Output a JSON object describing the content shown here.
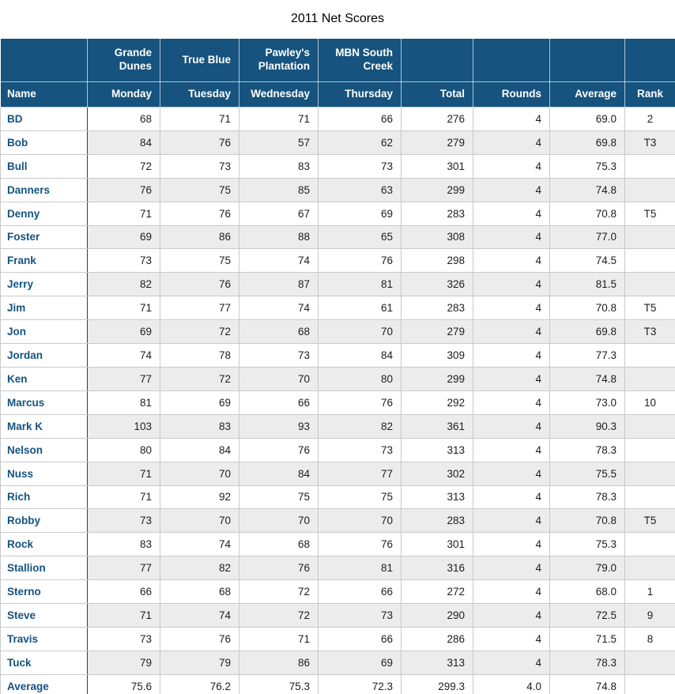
{
  "title": "2011 Net Scores",
  "colors": {
    "header_bg": "#16537E",
    "header_text": "#FFFFFF",
    "name_text": "#155380",
    "row_alt_bg": "#ECECEC",
    "grid_line": "#C9C9C9",
    "name_divider": "#3A3A3A"
  },
  "table": {
    "course_header": [
      "",
      "Grande Dunes",
      "True Blue",
      "Pawley's Plantation",
      "MBN South Creek",
      "",
      "",
      "",
      ""
    ],
    "day_header": [
      "Name",
      "Monday",
      "Tuesday",
      "Wednesday",
      "Thursday",
      "Total",
      "Rounds",
      "Average",
      "Rank"
    ],
    "rows": [
      {
        "name": "BD",
        "scores": [
          "68",
          "71",
          "71",
          "66"
        ],
        "total": "276",
        "rounds": "4",
        "average": "69.0",
        "rank": "2"
      },
      {
        "name": "Bob",
        "scores": [
          "84",
          "76",
          "57",
          "62"
        ],
        "total": "279",
        "rounds": "4",
        "average": "69.8",
        "rank": "T3"
      },
      {
        "name": "Bull",
        "scores": [
          "72",
          "73",
          "83",
          "73"
        ],
        "total": "301",
        "rounds": "4",
        "average": "75.3",
        "rank": ""
      },
      {
        "name": "Danners",
        "scores": [
          "76",
          "75",
          "85",
          "63"
        ],
        "total": "299",
        "rounds": "4",
        "average": "74.8",
        "rank": ""
      },
      {
        "name": "Denny",
        "scores": [
          "71",
          "76",
          "67",
          "69"
        ],
        "total": "283",
        "rounds": "4",
        "average": "70.8",
        "rank": "T5"
      },
      {
        "name": "Foster",
        "scores": [
          "69",
          "86",
          "88",
          "65"
        ],
        "total": "308",
        "rounds": "4",
        "average": "77.0",
        "rank": ""
      },
      {
        "name": "Frank",
        "scores": [
          "73",
          "75",
          "74",
          "76"
        ],
        "total": "298",
        "rounds": "4",
        "average": "74.5",
        "rank": ""
      },
      {
        "name": "Jerry",
        "scores": [
          "82",
          "76",
          "87",
          "81"
        ],
        "total": "326",
        "rounds": "4",
        "average": "81.5",
        "rank": ""
      },
      {
        "name": "Jim",
        "scores": [
          "71",
          "77",
          "74",
          "61"
        ],
        "total": "283",
        "rounds": "4",
        "average": "70.8",
        "rank": "T5"
      },
      {
        "name": "Jon",
        "scores": [
          "69",
          "72",
          "68",
          "70"
        ],
        "total": "279",
        "rounds": "4",
        "average": "69.8",
        "rank": "T3"
      },
      {
        "name": "Jordan",
        "scores": [
          "74",
          "78",
          "73",
          "84"
        ],
        "total": "309",
        "rounds": "4",
        "average": "77.3",
        "rank": ""
      },
      {
        "name": "Ken",
        "scores": [
          "77",
          "72",
          "70",
          "80"
        ],
        "total": "299",
        "rounds": "4",
        "average": "74.8",
        "rank": ""
      },
      {
        "name": "Marcus",
        "scores": [
          "81",
          "69",
          "66",
          "76"
        ],
        "total": "292",
        "rounds": "4",
        "average": "73.0",
        "rank": "10"
      },
      {
        "name": "Mark K",
        "scores": [
          "103",
          "83",
          "93",
          "82"
        ],
        "total": "361",
        "rounds": "4",
        "average": "90.3",
        "rank": ""
      },
      {
        "name": "Nelson",
        "scores": [
          "80",
          "84",
          "76",
          "73"
        ],
        "total": "313",
        "rounds": "4",
        "average": "78.3",
        "rank": ""
      },
      {
        "name": "Nuss",
        "scores": [
          "71",
          "70",
          "84",
          "77"
        ],
        "total": "302",
        "rounds": "4",
        "average": "75.5",
        "rank": ""
      },
      {
        "name": "Rich",
        "scores": [
          "71",
          "92",
          "75",
          "75"
        ],
        "total": "313",
        "rounds": "4",
        "average": "78.3",
        "rank": ""
      },
      {
        "name": "Robby",
        "scores": [
          "73",
          "70",
          "70",
          "70"
        ],
        "total": "283",
        "rounds": "4",
        "average": "70.8",
        "rank": "T5"
      },
      {
        "name": "Rock",
        "scores": [
          "83",
          "74",
          "68",
          "76"
        ],
        "total": "301",
        "rounds": "4",
        "average": "75.3",
        "rank": ""
      },
      {
        "name": "Stallion",
        "scores": [
          "77",
          "82",
          "76",
          "81"
        ],
        "total": "316",
        "rounds": "4",
        "average": "79.0",
        "rank": ""
      },
      {
        "name": "Sterno",
        "scores": [
          "66",
          "68",
          "72",
          "66"
        ],
        "total": "272",
        "rounds": "4",
        "average": "68.0",
        "rank": "1"
      },
      {
        "name": "Steve",
        "scores": [
          "71",
          "74",
          "72",
          "73"
        ],
        "total": "290",
        "rounds": "4",
        "average": "72.5",
        "rank": "9"
      },
      {
        "name": "Travis",
        "scores": [
          "73",
          "76",
          "71",
          "66"
        ],
        "total": "286",
        "rounds": "4",
        "average": "71.5",
        "rank": "8"
      },
      {
        "name": "Tuck",
        "scores": [
          "79",
          "79",
          "86",
          "69"
        ],
        "total": "313",
        "rounds": "4",
        "average": "78.3",
        "rank": ""
      },
      {
        "name": "Average",
        "scores": [
          "75.6",
          "76.2",
          "75.3",
          "72.3"
        ],
        "total": "299.3",
        "rounds": "4.0",
        "average": "74.8",
        "rank": ""
      }
    ]
  },
  "chart_data": {
    "type": "table",
    "title": "2011 Net Scores",
    "columns": [
      "Name",
      "Monday (Grande Dunes)",
      "Tuesday (True Blue)",
      "Wednesday (Pawley's Plantation)",
      "Thursday (MBN South Creek)",
      "Total",
      "Rounds",
      "Average",
      "Rank"
    ],
    "rows": [
      [
        "BD",
        68,
        71,
        71,
        66,
        276,
        4,
        69.0,
        "2"
      ],
      [
        "Bob",
        84,
        76,
        57,
        62,
        279,
        4,
        69.8,
        "T3"
      ],
      [
        "Bull",
        72,
        73,
        83,
        73,
        301,
        4,
        75.3,
        ""
      ],
      [
        "Danners",
        76,
        75,
        85,
        63,
        299,
        4,
        74.8,
        ""
      ],
      [
        "Denny",
        71,
        76,
        67,
        69,
        283,
        4,
        70.8,
        "T5"
      ],
      [
        "Foster",
        69,
        86,
        88,
        65,
        308,
        4,
        77.0,
        ""
      ],
      [
        "Frank",
        73,
        75,
        74,
        76,
        298,
        4,
        74.5,
        ""
      ],
      [
        "Jerry",
        82,
        76,
        87,
        81,
        326,
        4,
        81.5,
        ""
      ],
      [
        "Jim",
        71,
        77,
        74,
        61,
        283,
        4,
        70.8,
        "T5"
      ],
      [
        "Jon",
        69,
        72,
        68,
        70,
        279,
        4,
        69.8,
        "T3"
      ],
      [
        "Jordan",
        74,
        78,
        73,
        84,
        309,
        4,
        77.3,
        ""
      ],
      [
        "Ken",
        77,
        72,
        70,
        80,
        299,
        4,
        74.8,
        ""
      ],
      [
        "Marcus",
        81,
        69,
        66,
        76,
        292,
        4,
        73.0,
        "10"
      ],
      [
        "Mark K",
        103,
        83,
        93,
        82,
        361,
        4,
        90.3,
        ""
      ],
      [
        "Nelson",
        80,
        84,
        76,
        73,
        313,
        4,
        78.3,
        ""
      ],
      [
        "Nuss",
        71,
        70,
        84,
        77,
        302,
        4,
        75.5,
        ""
      ],
      [
        "Rich",
        71,
        92,
        75,
        75,
        313,
        4,
        78.3,
        ""
      ],
      [
        "Robby",
        73,
        70,
        70,
        70,
        283,
        4,
        70.8,
        "T5"
      ],
      [
        "Rock",
        83,
        74,
        68,
        76,
        301,
        4,
        75.3,
        ""
      ],
      [
        "Stallion",
        77,
        82,
        76,
        81,
        316,
        4,
        79.0,
        ""
      ],
      [
        "Sterno",
        66,
        68,
        72,
        66,
        272,
        4,
        68.0,
        "1"
      ],
      [
        "Steve",
        71,
        74,
        72,
        73,
        290,
        4,
        72.5,
        "9"
      ],
      [
        "Travis",
        73,
        76,
        71,
        66,
        286,
        4,
        71.5,
        "8"
      ],
      [
        "Tuck",
        79,
        79,
        86,
        69,
        313,
        4,
        78.3,
        ""
      ],
      [
        "Average",
        75.6,
        76.2,
        75.3,
        72.3,
        299.3,
        4.0,
        74.8,
        ""
      ]
    ]
  }
}
